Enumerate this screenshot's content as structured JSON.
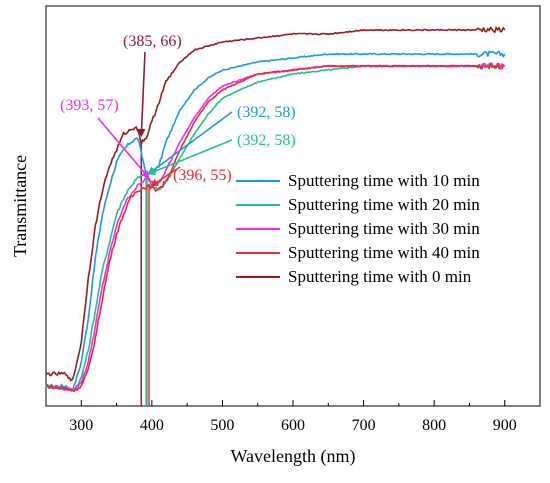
{
  "chart_data": {
    "type": "line",
    "title": "",
    "xlabel": "Wavelength (nm)",
    "ylabel": "Transmittance",
    "xlim": [
      250,
      950
    ],
    "ylim": [
      0,
      100
    ],
    "x_ticks": [
      300,
      400,
      500,
      600,
      700,
      800,
      900
    ],
    "y_ticks_shown": false,
    "grid": false,
    "legend_position": "center-right",
    "series": [
      {
        "name": "Sputtering time with 10 min",
        "color": "#1a9be0",
        "points": [
          [
            250,
            5
          ],
          [
            280,
            5
          ],
          [
            285,
            4
          ],
          [
            290,
            5
          ],
          [
            300,
            11
          ],
          [
            310,
            22
          ],
          [
            320,
            37
          ],
          [
            330,
            48
          ],
          [
            340,
            55
          ],
          [
            350,
            61
          ],
          [
            360,
            64
          ],
          [
            370,
            66
          ],
          [
            380,
            67
          ],
          [
            392,
            58
          ],
          [
            400,
            58
          ],
          [
            410,
            60
          ],
          [
            420,
            66
          ],
          [
            440,
            74
          ],
          [
            460,
            79
          ],
          [
            480,
            82
          ],
          [
            500,
            84
          ],
          [
            550,
            86
          ],
          [
            600,
            87
          ],
          [
            650,
            88
          ],
          [
            700,
            88
          ],
          [
            800,
            88
          ],
          [
            900,
            88
          ]
        ]
      },
      {
        "name": "Sputtering time with 20 min",
        "color": "#22c185",
        "points": [
          [
            250,
            5
          ],
          [
            290,
            4
          ],
          [
            300,
            7
          ],
          [
            310,
            14
          ],
          [
            320,
            24
          ],
          [
            330,
            34
          ],
          [
            340,
            41
          ],
          [
            350,
            48
          ],
          [
            360,
            52
          ],
          [
            370,
            55
          ],
          [
            380,
            57
          ],
          [
            392,
            58
          ],
          [
            400,
            55
          ],
          [
            410,
            54
          ],
          [
            420,
            56
          ],
          [
            440,
            62
          ],
          [
            460,
            68
          ],
          [
            480,
            73
          ],
          [
            500,
            77
          ],
          [
            550,
            81
          ],
          [
            600,
            83
          ],
          [
            650,
            84
          ],
          [
            700,
            85
          ],
          [
            800,
            85
          ],
          [
            900,
            85
          ]
        ]
      },
      {
        "name": "Sputtering time with 30 min",
        "color": "#ef2ced",
        "points": [
          [
            250,
            5
          ],
          [
            290,
            4
          ],
          [
            300,
            6
          ],
          [
            310,
            11
          ],
          [
            320,
            20
          ],
          [
            330,
            30
          ],
          [
            340,
            38
          ],
          [
            350,
            45
          ],
          [
            360,
            50
          ],
          [
            370,
            53
          ],
          [
            380,
            55
          ],
          [
            393,
            57
          ],
          [
            400,
            56
          ],
          [
            410,
            56
          ],
          [
            420,
            59
          ],
          [
            440,
            66
          ],
          [
            460,
            72
          ],
          [
            480,
            77
          ],
          [
            500,
            80
          ],
          [
            550,
            83
          ],
          [
            600,
            84
          ],
          [
            650,
            85
          ],
          [
            700,
            85
          ],
          [
            800,
            85
          ],
          [
            900,
            85
          ]
        ]
      },
      {
        "name": "Sputtering time with 40 min",
        "color": "#ec2a36",
        "points": [
          [
            250,
            5
          ],
          [
            290,
            4
          ],
          [
            300,
            5
          ],
          [
            310,
            9
          ],
          [
            320,
            17
          ],
          [
            330,
            27
          ],
          [
            340,
            36
          ],
          [
            350,
            43
          ],
          [
            360,
            48
          ],
          [
            370,
            52
          ],
          [
            380,
            54
          ],
          [
            396,
            55
          ],
          [
            405,
            54
          ],
          [
            415,
            55
          ],
          [
            425,
            58
          ],
          [
            440,
            64
          ],
          [
            460,
            71
          ],
          [
            480,
            76
          ],
          [
            500,
            79
          ],
          [
            550,
            83
          ],
          [
            600,
            84
          ],
          [
            650,
            85
          ],
          [
            700,
            85
          ],
          [
            800,
            85
          ],
          [
            900,
            85
          ]
        ]
      },
      {
        "name": "Sputtering time with 0 min",
        "color": "#991b1b",
        "points": [
          [
            250,
            8
          ],
          [
            280,
            8
          ],
          [
            285,
            6
          ],
          [
            290,
            8
          ],
          [
            300,
            16
          ],
          [
            310,
            32
          ],
          [
            320,
            45
          ],
          [
            330,
            54
          ],
          [
            340,
            60
          ],
          [
            350,
            64
          ],
          [
            360,
            68
          ],
          [
            370,
            69
          ],
          [
            378,
            70
          ],
          [
            385,
            66
          ],
          [
            392,
            67
          ],
          [
            400,
            71
          ],
          [
            420,
            81
          ],
          [
            440,
            86
          ],
          [
            460,
            89
          ],
          [
            480,
            90
          ],
          [
            500,
            91
          ],
          [
            550,
            92
          ],
          [
            600,
            93
          ],
          [
            650,
            93
          ],
          [
            700,
            94
          ],
          [
            800,
            94
          ],
          [
            900,
            94
          ]
        ]
      }
    ],
    "annotations": [
      {
        "text": "(385, 66)",
        "color": "#8b1a4a",
        "x": 385,
        "y": 66
      },
      {
        "text": "(393, 57)",
        "color": "#ef2ced",
        "x": 393,
        "y": 57
      },
      {
        "text": "(392, 58)",
        "color": "#1a9be0",
        "x": 392,
        "y": 58
      },
      {
        "text": "(392, 58)",
        "color": "#22c185",
        "x": 392,
        "y": 58
      },
      {
        "text": "(396, 55)",
        "color": "#ec2a36",
        "x": 396,
        "y": 55
      }
    ]
  }
}
